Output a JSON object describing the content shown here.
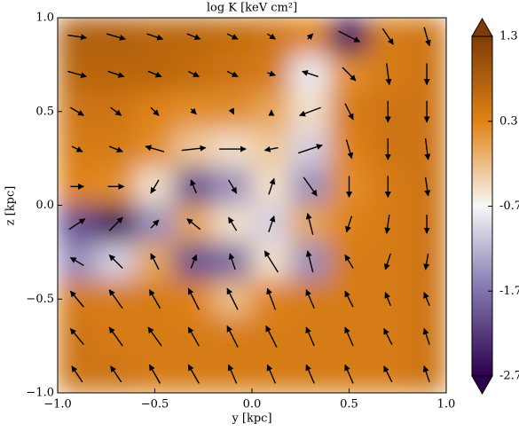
{
  "chart_data": {
    "type": "heatmap-quiver",
    "title": "log K  [keV cm²]",
    "xlabel": "y [kpc]",
    "ylabel": "z [kpc]",
    "xlim": [
      -1,
      1
    ],
    "ylim": [
      -1,
      1
    ],
    "xticks": [
      {
        "value": -1,
        "label": "−1.0"
      },
      {
        "value": -0.5,
        "label": "−0.5"
      },
      {
        "value": 0,
        "label": "0.0"
      },
      0.5,
      {
        "value": 1,
        "label": "1.0"
      }
    ],
    "yticks": [
      {
        "value": -1,
        "label": "−1.0"
      },
      {
        "value": -0.5,
        "label": "−0.5"
      },
      {
        "value": 0,
        "label": "0.0"
      },
      0.5,
      {
        "value": 1,
        "label": "1.0"
      }
    ],
    "x": [
      -0.9,
      -0.7,
      -0.5,
      -0.3,
      -0.1,
      0.1,
      0.3,
      0.5,
      0.7,
      0.9
    ],
    "y": [
      0.9,
      0.7,
      0.5,
      0.3,
      0.1,
      -0.1,
      -0.3,
      -0.5,
      -0.7,
      -0.9
    ],
    "values": [
      [
        0.8,
        0.8,
        0.7,
        0.7,
        0.6,
        0.5,
        0.3,
        -2.5,
        0.4,
        0.5
      ],
      [
        0.7,
        0.7,
        0.7,
        0.6,
        0.5,
        0.4,
        -0.8,
        0.2,
        0.4,
        0.5
      ],
      [
        0.5,
        0.5,
        0.3,
        0.2,
        0.2,
        0.0,
        -0.5,
        0.4,
        0.5,
        0.5
      ],
      [
        0.4,
        0.4,
        0.2,
        -0.3,
        -0.5,
        -0.3,
        -1.0,
        0.3,
        0.5,
        0.5
      ],
      [
        0.3,
        0.2,
        -0.5,
        -2.0,
        -1.5,
        -0.5,
        -1.5,
        0.2,
        0.4,
        0.5
      ],
      [
        -2.0,
        -2.6,
        -1.5,
        0.0,
        -0.5,
        -1.0,
        0.0,
        0.3,
        0.4,
        0.5
      ],
      [
        -1.5,
        -1.0,
        0.0,
        -2.0,
        -1.8,
        -0.5,
        -1.5,
        0.4,
        0.4,
        0.5
      ],
      [
        0.4,
        0.4,
        0.4,
        0.3,
        -0.2,
        0.3,
        0.4,
        0.4,
        0.4,
        0.5
      ],
      [
        0.5,
        0.4,
        0.4,
        0.4,
        0.4,
        0.4,
        0.4,
        0.4,
        0.4,
        0.5
      ],
      [
        0.5,
        0.5,
        0.4,
        0.4,
        0.4,
        0.4,
        0.4,
        0.4,
        0.4,
        0.5
      ]
    ],
    "u": [
      [
        0.7,
        0.7,
        0.6,
        0.5,
        0.4,
        0.3,
        0.2,
        0.8,
        0.4,
        0.2
      ],
      [
        0.7,
        0.6,
        0.5,
        0.4,
        0.4,
        0.3,
        -0.6,
        0.5,
        0.1,
        0.0
      ],
      [
        0.5,
        0.4,
        0.3,
        0.2,
        0.1,
        0.0,
        -0.8,
        0.3,
        0.0,
        0.0
      ],
      [
        0.4,
        0.5,
        -0.7,
        0.9,
        1.0,
        -0.5,
        0.9,
        0.2,
        0.0,
        0.1
      ],
      [
        0.5,
        0.6,
        -0.3,
        -0.2,
        0.3,
        0.2,
        0.5,
        0.0,
        0.0,
        0.1
      ],
      [
        0.6,
        0.5,
        0.3,
        -0.5,
        -0.3,
        0.2,
        -0.2,
        -0.2,
        -0.1,
        0.0
      ],
      [
        -0.5,
        -0.5,
        -0.3,
        0.2,
        -0.2,
        -0.5,
        -0.2,
        -0.3,
        -0.2,
        -0.1
      ],
      [
        -0.5,
        -0.5,
        -0.4,
        -0.4,
        -0.4,
        -0.3,
        -0.3,
        -0.3,
        -0.2,
        -0.2
      ],
      [
        -0.5,
        -0.5,
        -0.5,
        -0.4,
        -0.4,
        -0.4,
        -0.3,
        -0.3,
        -0.3,
        -0.2
      ],
      [
        -0.4,
        -0.4,
        -0.4,
        -0.4,
        -0.3,
        -0.3,
        -0.3,
        -0.3,
        -0.3,
        -0.2
      ]
    ],
    "v": [
      [
        -0.1,
        -0.2,
        -0.2,
        -0.2,
        -0.2,
        -0.2,
        0.2,
        -0.4,
        -0.6,
        -0.7
      ],
      [
        -0.2,
        -0.2,
        -0.2,
        -0.2,
        -0.2,
        -0.1,
        0.2,
        -0.5,
        -0.8,
        -0.8
      ],
      [
        -0.3,
        -0.3,
        -0.3,
        -0.2,
        -0.2,
        0.1,
        -0.3,
        -0.6,
        -0.8,
        -0.8
      ],
      [
        -0.2,
        -0.2,
        0.2,
        0.1,
        0.0,
        -0.1,
        0.3,
        -0.7,
        -0.8,
        -0.8
      ],
      [
        0.0,
        0.0,
        -0.5,
        0.5,
        -0.5,
        0.6,
        -0.7,
        -0.8,
        -0.8,
        -0.7
      ],
      [
        0.4,
        0.5,
        0.3,
        0.4,
        0.5,
        0.6,
        0.8,
        -0.6,
        -0.7,
        -0.7
      ],
      [
        0.3,
        0.5,
        0.6,
        0.5,
        0.6,
        0.8,
        0.8,
        0.5,
        -0.6,
        -0.6
      ],
      [
        0.6,
        0.7,
        0.7,
        0.8,
        0.8,
        0.8,
        0.7,
        0.6,
        0.5,
        0.5
      ],
      [
        0.6,
        0.7,
        0.7,
        0.7,
        0.8,
        0.8,
        0.7,
        0.7,
        0.6,
        0.6
      ],
      [
        0.6,
        0.6,
        0.7,
        0.7,
        0.7,
        0.7,
        0.7,
        0.7,
        0.6,
        0.6
      ]
    ],
    "clim": [
      -2.7,
      1.3
    ],
    "colorbar_ticks": [
      1.3,
      0.3,
      -0.7,
      -1.7,
      -2.7
    ],
    "colors": [
      "#2d004b",
      "#8073ac",
      "#f7f7f7",
      "#e08214",
      "#7f3b08"
    ]
  }
}
